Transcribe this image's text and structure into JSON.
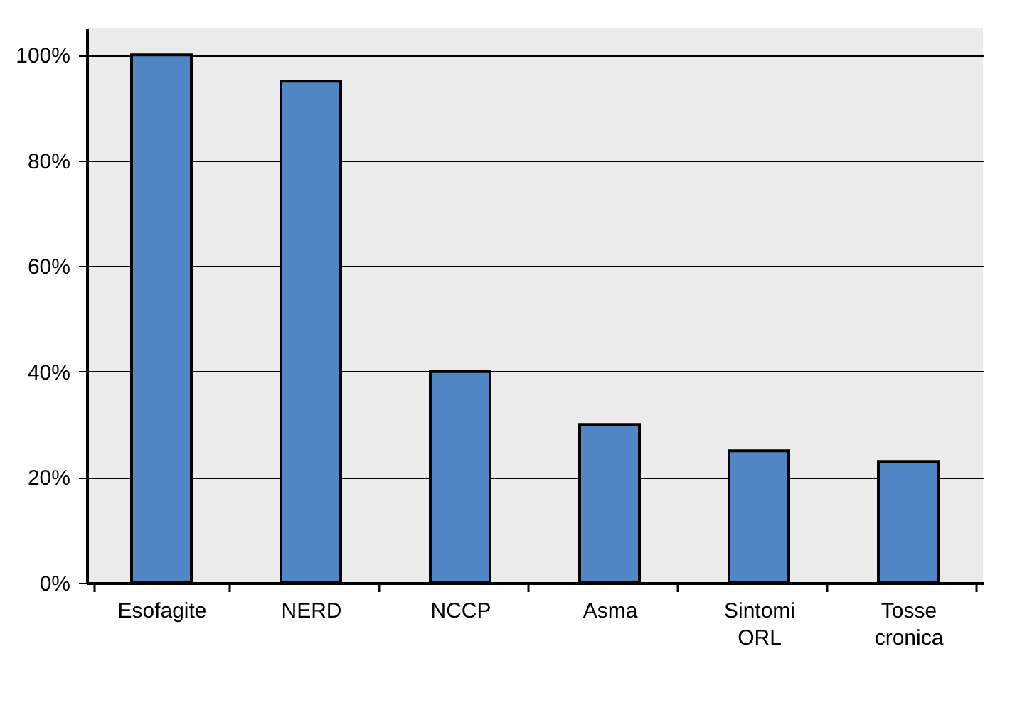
{
  "chart_data": {
    "type": "bar",
    "categories": [
      "Esofagite",
      "NERD",
      "NCCP",
      "Asma",
      "Sintomi ORL",
      "Tosse cronica"
    ],
    "values": [
      100,
      95,
      40,
      30,
      25,
      23
    ],
    "color": "#4f86c3",
    "ylim": [
      0,
      105
    ],
    "yticks": [
      {
        "value": 0,
        "label": "0%"
      },
      {
        "value": 20,
        "label": "20%"
      },
      {
        "value": 40,
        "label": "40%"
      },
      {
        "value": 60,
        "label": "60%"
      },
      {
        "value": 80,
        "label": "80%"
      },
      {
        "value": 100,
        "label": "100%"
      }
    ],
    "grid": "y"
  }
}
